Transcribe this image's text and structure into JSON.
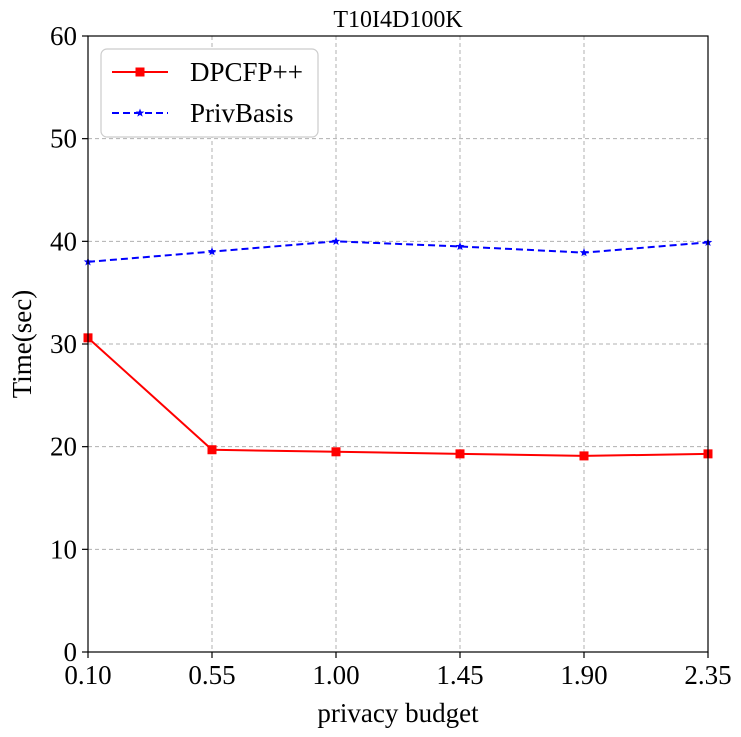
{
  "chart_data": {
    "type": "line",
    "title": "T10I4D100K",
    "xlabel": "privacy budget",
    "ylabel": "Time(sec)",
    "x": [
      0.1,
      0.55,
      1.0,
      1.45,
      1.9,
      2.35
    ],
    "x_tick_labels": [
      "0.10",
      "0.55",
      "1.00",
      "1.45",
      "1.90",
      "2.35"
    ],
    "y_tick_labels": [
      "0",
      "10",
      "20",
      "30",
      "40",
      "50",
      "60"
    ],
    "xlim": [
      0.1,
      2.35
    ],
    "ylim": [
      0,
      60
    ],
    "grid": true,
    "legend_position": "top-left",
    "series": [
      {
        "name": "DPCFP++",
        "values": [
          30.6,
          19.7,
          19.5,
          19.3,
          19.1,
          19.3
        ],
        "color": "#ff0000",
        "line_style": "solid",
        "marker": "square"
      },
      {
        "name": "PrivBasis",
        "values": [
          38.0,
          39.0,
          40.0,
          39.5,
          38.9,
          39.9
        ],
        "color": "#0000ff",
        "line_style": "dashed",
        "marker": "star"
      }
    ]
  }
}
